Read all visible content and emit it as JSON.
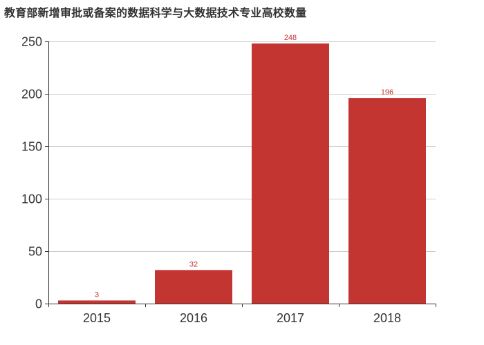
{
  "chart_data": {
    "type": "bar",
    "title": "教育部新增审批或备案的数据科学与大数据技术专业高校数量",
    "categories": [
      "2015",
      "2016",
      "2017",
      "2018"
    ],
    "values": [
      3,
      32,
      248,
      196
    ],
    "xlabel": "",
    "ylabel": "",
    "ylim": [
      0,
      250
    ],
    "yticks": [
      0,
      50,
      100,
      150,
      200,
      250
    ],
    "grid": true,
    "legend": null,
    "data_labels": true,
    "colors": {
      "bar": "#c23531",
      "label": "#c23531",
      "axis": "#333333",
      "grid": "#cccccc"
    }
  }
}
